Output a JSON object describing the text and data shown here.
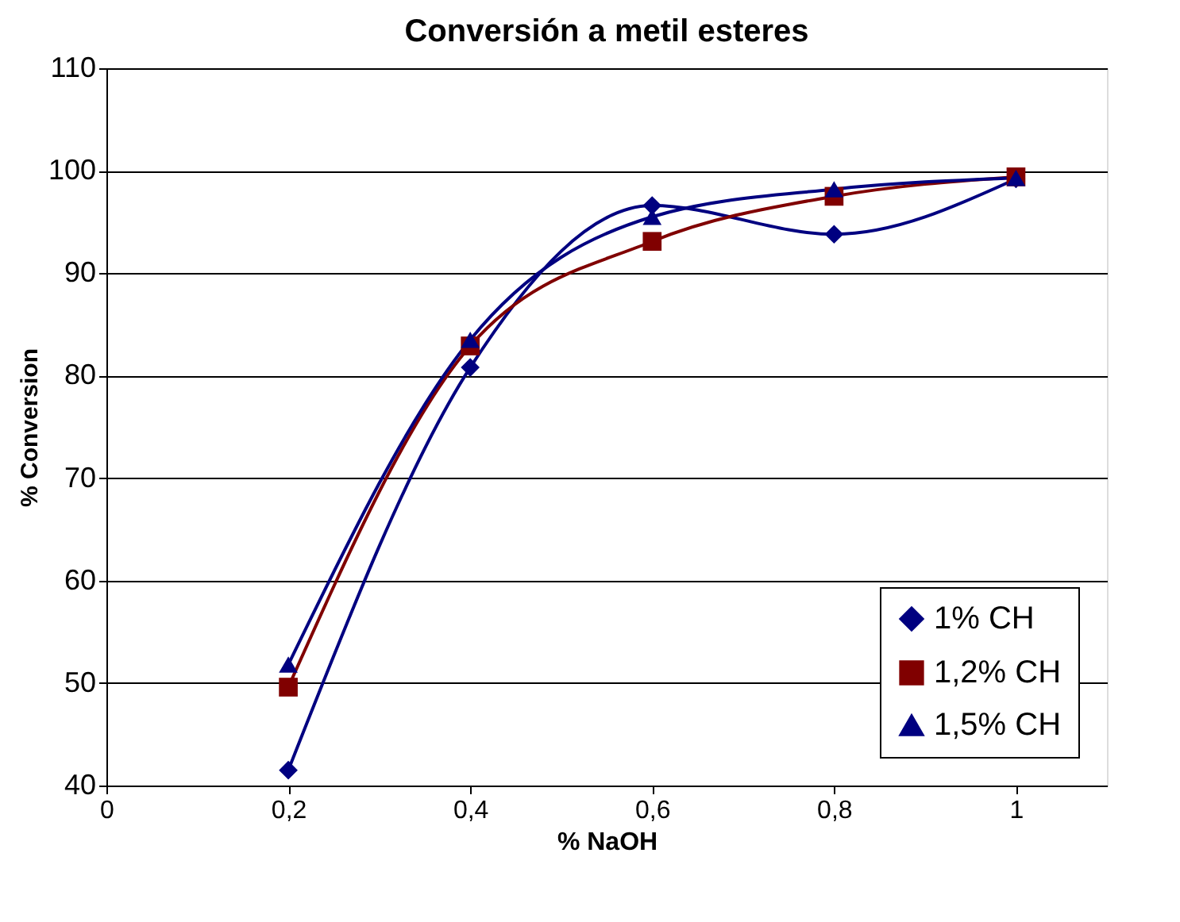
{
  "chart_data": {
    "type": "line",
    "title": "Conversión a metil esteres",
    "xlabel": "% NaOH",
    "ylabel": "% Conversion",
    "x": [
      0.2,
      0.4,
      0.6,
      0.8,
      1
    ],
    "series": [
      {
        "name": "1%  CH",
        "color": "#000080",
        "marker": "diamond",
        "values": [
          41.5,
          80.8,
          96.6,
          93.8,
          99.2
        ]
      },
      {
        "name": "1,2% CH",
        "color": "#800000",
        "marker": "square",
        "values": [
          49.6,
          82.9,
          93.1,
          97.5,
          99.4
        ]
      },
      {
        "name": "1,5% CH",
        "color": "#000080",
        "marker": "triangle",
        "values": [
          51.8,
          83.5,
          95.5,
          98.2,
          99.3
        ]
      }
    ],
    "xlim": [
      0,
      1.1
    ],
    "xticks": [
      0,
      {
        "value": 0.2,
        "label": "0,2"
      },
      {
        "value": 0.4,
        "label": "0,4"
      },
      {
        "value": 0.6,
        "label": "0,6"
      },
      {
        "value": 0.8,
        "label": "0,8"
      },
      1
    ],
    "ylim": [
      40,
      110
    ],
    "yticks": [
      40,
      50,
      60,
      70,
      80,
      90,
      100,
      110
    ],
    "grid": "y",
    "legend": "bottom right",
    "line_style": "solid"
  }
}
